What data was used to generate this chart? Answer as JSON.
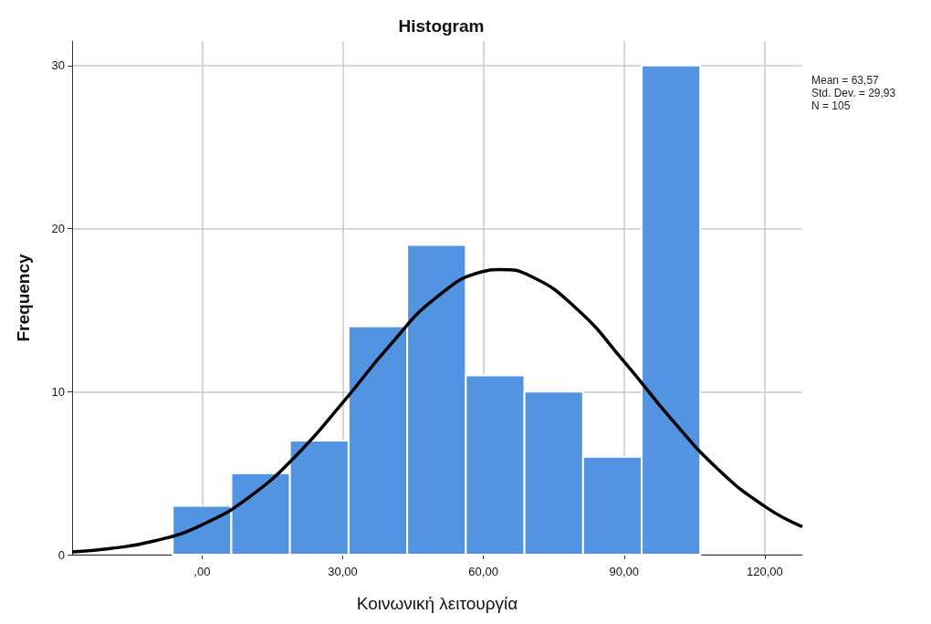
{
  "chart_data": {
    "type": "histogram",
    "title": "Histogram",
    "xlabel": "Κοινωνική λειτουργία",
    "ylabel": "Frequency",
    "bins": [
      -6.25,
      6.25,
      18.75,
      31.25,
      43.75,
      56.25,
      68.75,
      81.25,
      93.75,
      106.25
    ],
    "values": [
      3,
      5,
      7,
      14,
      19,
      11,
      10,
      6,
      30
    ],
    "color": "#5294e2",
    "series": [
      {
        "type": "line",
        "color": "#000000",
        "x": [
          -27.7,
          -20,
          -10,
          0,
          10,
          20,
          30,
          40,
          50,
          60,
          63.57,
          70,
          80,
          90,
          100,
          110,
          120,
          128
        ],
        "values": [
          0.17,
          0.36,
          0.85,
          1.83,
          3.52,
          6.06,
          9.32,
          12.82,
          15.78,
          17.37,
          17.49,
          17.09,
          15.05,
          11.84,
          8.34,
          5.25,
          2.96,
          1.72
        ]
      }
    ],
    "xlim": [
      -27.7,
      128
    ],
    "xticks": [
      {
        "value": 0,
        "label": ",00"
      },
      {
        "value": 30,
        "label": "30,00"
      },
      {
        "value": 60,
        "label": "60,00"
      },
      {
        "value": 90,
        "label": "90,00"
      },
      {
        "value": 120,
        "label": "120,00"
      }
    ],
    "ylim": [
      0,
      31.5
    ],
    "yticks": [
      0,
      10,
      20,
      30
    ],
    "grid": true,
    "annotations": [
      "Mean = 63,57",
      "Std. Dev. = 29,93",
      "N = 105"
    ]
  }
}
